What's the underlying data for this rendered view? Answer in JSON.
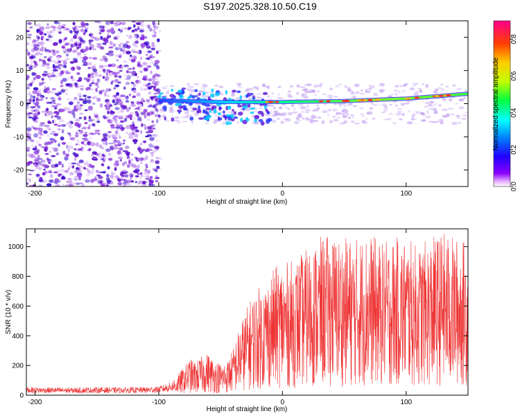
{
  "title": "S197.2025.328.10.50.C19",
  "colors": {
    "line": "#ee3333",
    "track": "#e33b35",
    "scatter": "#7b1ed9",
    "axis": "#000000"
  },
  "chart_data": [
    {
      "type": "heatmap",
      "name": "spectrogram",
      "xlabel": "Height of straight line (km)",
      "ylabel": "Frequency (Hz)",
      "xlim": [
        -207,
        150
      ],
      "ylim": [
        -25,
        25
      ],
      "xticks": [
        -200,
        -100,
        0,
        100
      ],
      "yticks": [
        -20,
        -10,
        0,
        10,
        20
      ],
      "xtick_labels": [
        "-200",
        "-100",
        "0",
        "100"
      ],
      "ytick_labels": [
        "-20",
        "-10",
        "0",
        "10",
        "20"
      ],
      "colorbar": {
        "label": "Normalized spectral amplitude",
        "range": [
          0,
          0.9
        ],
        "ticks": [
          0.0,
          0.2,
          0.4,
          0.6,
          0.8
        ],
        "tick_labels": [
          "0.0",
          "0.2",
          "0.4",
          "0.6",
          "0.8"
        ]
      },
      "signal_track": {
        "x": [
          -100,
          -50,
          0,
          50,
          100,
          150
        ],
        "frequency": [
          1,
          0.5,
          0.5,
          0.8,
          1.5,
          3
        ]
      }
    },
    {
      "type": "line",
      "name": "snr",
      "xlabel": "Height of straight line (km)",
      "ylabel": "SNR (10 * v/v)",
      "xlim": [
        -207,
        150
      ],
      "ylim": [
        0,
        1120
      ],
      "xticks": [
        -200,
        -100,
        0,
        100
      ],
      "yticks": [
        0,
        200,
        400,
        600,
        800,
        1000
      ],
      "xtick_labels": [
        "-200",
        "-100",
        "0",
        "100"
      ],
      "ytick_labels": [
        "0",
        "200",
        "400",
        "600",
        "800",
        "1000"
      ],
      "series": [
        {
          "name": "SNR",
          "x": [
            -207,
            -190,
            -170,
            -150,
            -130,
            -110,
            -100,
            -90,
            -85,
            -80,
            -75,
            -70,
            -65,
            -60,
            -55,
            -50,
            -45,
            -40,
            -35,
            -30,
            -25,
            -20,
            -15,
            -10,
            -5,
            0,
            5,
            10,
            15,
            20,
            25,
            30,
            40,
            50,
            60,
            70,
            80,
            90,
            100,
            110,
            120,
            130,
            140,
            150
          ],
          "y": [
            35,
            33,
            32,
            34,
            33,
            35,
            38,
            55,
            70,
            100,
            130,
            120,
            140,
            150,
            125,
            115,
            120,
            165,
            240,
            300,
            350,
            380,
            400,
            430,
            460,
            470,
            475,
            480,
            500,
            520,
            540,
            560,
            570,
            560,
            560,
            580,
            540,
            560,
            560,
            530,
            560,
            580,
            560,
            550
          ]
        }
      ]
    }
  ]
}
